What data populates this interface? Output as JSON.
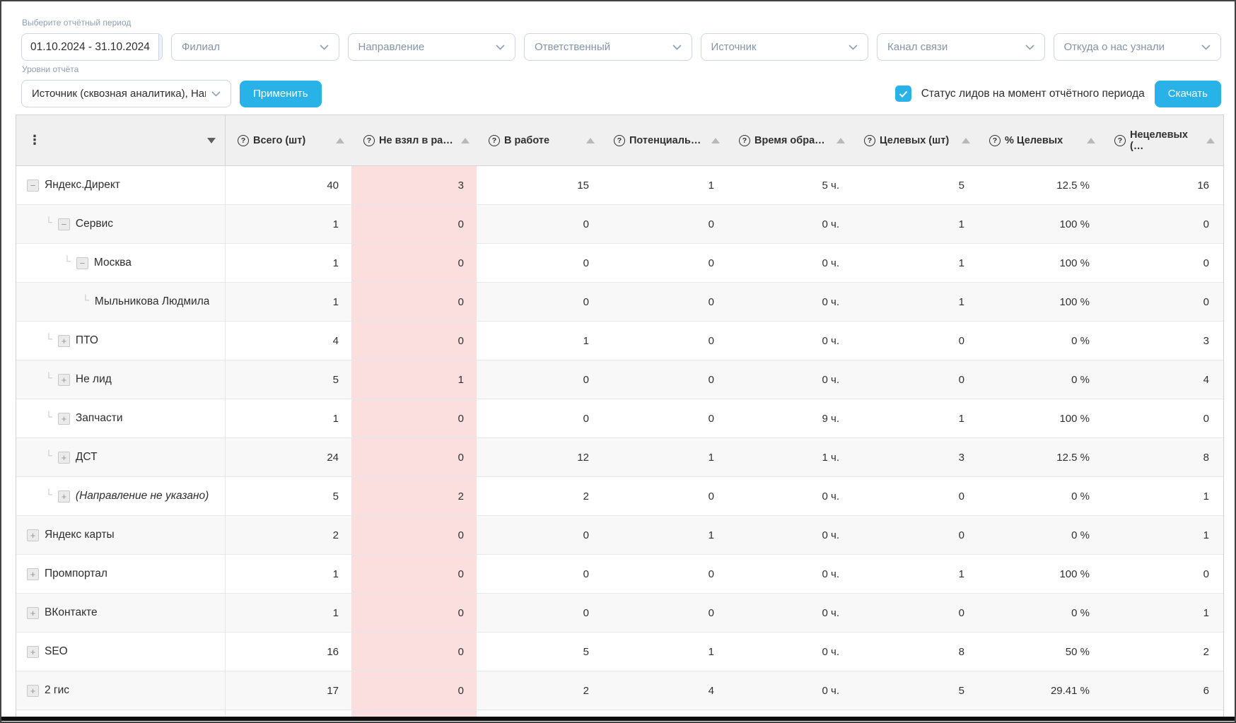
{
  "filters": {
    "period_label": "Выберите отчётный период",
    "date_value": "01.10.2024 - 31.10.2024",
    "dropdowns": [
      "Филиал",
      "Направление",
      "Ответственный",
      "Источник",
      "Канал связи",
      "Откуда о нас узнали"
    ],
    "levels_label": "Уровни отчёта",
    "levels_value": "Источник (сквозная аналитика), Нап",
    "apply_label": "Применить",
    "status_checkbox_label": "Статус лидов на момент отчётного периода",
    "status_checkbox_checked": true,
    "download_label": "Скачать"
  },
  "table": {
    "columns": [
      "Всего (шт)",
      "Не взял в ра…",
      "В работе",
      "Потенциаль…",
      "Время обра…",
      "Целевых (шт)",
      "% Целевых",
      "Нецелевых (…"
    ],
    "highlight_column_index": 1,
    "rows": [
      {
        "label": "Яндекс.Директ",
        "level": 0,
        "expander": "minus",
        "italic": false,
        "values": [
          40,
          3,
          15,
          1,
          "5 ч.",
          5,
          "12.5 %",
          16
        ]
      },
      {
        "label": "Сервис",
        "level": 1,
        "expander": "minus",
        "italic": false,
        "values": [
          1,
          0,
          0,
          0,
          "0 ч.",
          1,
          "100 %",
          0
        ]
      },
      {
        "label": "Москва",
        "level": 2,
        "expander": "minus",
        "italic": false,
        "values": [
          1,
          0,
          0,
          0,
          "0 ч.",
          1,
          "100 %",
          0
        ]
      },
      {
        "label": "Мыльникова Людмила",
        "level": 3,
        "expander": "none",
        "italic": false,
        "values": [
          1,
          0,
          0,
          0,
          "0 ч.",
          1,
          "100 %",
          0
        ]
      },
      {
        "label": "ПТО",
        "level": 1,
        "expander": "plus",
        "italic": false,
        "values": [
          4,
          0,
          1,
          0,
          "0 ч.",
          0,
          "0 %",
          3
        ]
      },
      {
        "label": "Не лид",
        "level": 1,
        "expander": "plus",
        "italic": false,
        "values": [
          5,
          1,
          0,
          0,
          "0 ч.",
          0,
          "0 %",
          4
        ]
      },
      {
        "label": "Запчасти",
        "level": 1,
        "expander": "plus",
        "italic": false,
        "values": [
          1,
          0,
          0,
          0,
          "9 ч.",
          1,
          "100 %",
          0
        ]
      },
      {
        "label": "ДСТ",
        "level": 1,
        "expander": "plus",
        "italic": false,
        "values": [
          24,
          0,
          12,
          1,
          "1 ч.",
          3,
          "12.5 %",
          8
        ]
      },
      {
        "label": "(Направление не указано)",
        "level": 1,
        "expander": "plus",
        "italic": true,
        "values": [
          5,
          2,
          2,
          0,
          "0 ч.",
          0,
          "0 %",
          1
        ]
      },
      {
        "label": "Яндекс карты",
        "level": 0,
        "expander": "plus",
        "italic": false,
        "values": [
          2,
          0,
          0,
          1,
          "0 ч.",
          0,
          "0 %",
          1
        ]
      },
      {
        "label": "Промпортал",
        "level": 0,
        "expander": "plus",
        "italic": false,
        "values": [
          1,
          0,
          0,
          0,
          "0 ч.",
          1,
          "100 %",
          0
        ]
      },
      {
        "label": "ВКонтакте",
        "level": 0,
        "expander": "plus",
        "italic": false,
        "values": [
          1,
          0,
          0,
          0,
          "0 ч.",
          0,
          "0 %",
          1
        ]
      },
      {
        "label": "SEO",
        "level": 0,
        "expander": "plus",
        "italic": false,
        "values": [
          16,
          0,
          5,
          1,
          "0 ч.",
          8,
          "50 %",
          2
        ]
      },
      {
        "label": "2 гис",
        "level": 0,
        "expander": "plus",
        "italic": false,
        "values": [
          17,
          0,
          2,
          4,
          "0 ч.",
          5,
          "29.41 %",
          6
        ]
      }
    ]
  },
  "colors": {
    "accent_blue": "#29b2e8",
    "highlight_pink": "#fbdede",
    "header_bg": "#f0f0f0"
  }
}
